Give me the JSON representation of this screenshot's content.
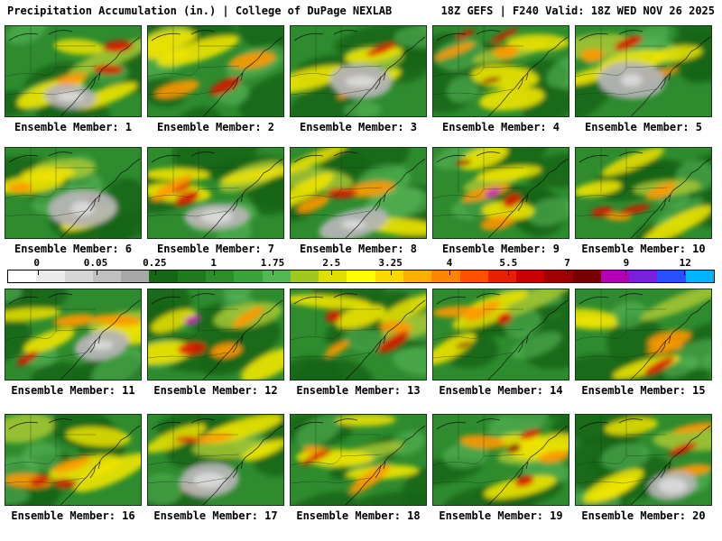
{
  "header": {
    "left": "Precipitation Accumulation (in.) | College of DuPage NEXLAB",
    "right": "18Z GEFS | F240 Valid: 18Z WED NOV 26 2025"
  },
  "panels": {
    "label_prefix": "Ensemble Member:",
    "members": [
      1,
      2,
      3,
      4,
      5,
      6,
      7,
      8,
      9,
      10,
      11,
      12,
      13,
      14,
      15,
      16,
      17,
      18,
      19,
      20
    ]
  },
  "colorbar": {
    "ticks": [
      "0",
      "0.05",
      "0.25",
      "1",
      "1.75",
      "2.5",
      "3.25",
      "4",
      "5.5",
      "7",
      "9",
      "12"
    ],
    "colors": [
      "#ffffff",
      "#ebebeb",
      "#d6d6d6",
      "#c0c0c0",
      "#a8a8a8",
      "#156615",
      "#1f7a1f",
      "#2a8f2a",
      "#38a438",
      "#52b852",
      "#a0c820",
      "#e0e000",
      "#ffff00",
      "#ffd800",
      "#ffae00",
      "#ff8400",
      "#ff5000",
      "#e82000",
      "#c80000",
      "#a00000",
      "#780000",
      "#b400b4",
      "#7820dc",
      "#2850ff",
      "#00b4ff"
    ]
  },
  "map_colors": {
    "base_green": "#2e8b2e",
    "dark_green": "#156615",
    "light_green": "#58b858",
    "yellow_green": "#a8c832",
    "yellow": "#f0e400",
    "orange": "#ff9800",
    "red": "#d81400",
    "dark_red": "#8c0000",
    "magenta": "#c814c8",
    "gray": "#b4b4b4",
    "gray_light": "#dcdcdc"
  }
}
